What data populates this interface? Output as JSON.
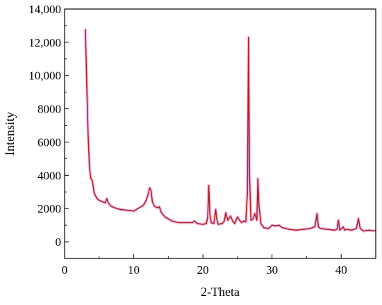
{
  "chart_data": {
    "type": "line",
    "title": "",
    "xlabel": "2-Theta",
    "ylabel": "Intensity",
    "xlim": [
      0,
      45
    ],
    "ylim": [
      -1000,
      14000
    ],
    "x_ticks": [
      0,
      10,
      20,
      30,
      40
    ],
    "x_tick_labels": [
      "0",
      "10",
      "20",
      "30",
      "40"
    ],
    "y_ticks": [
      0,
      2000,
      4000,
      6000,
      8000,
      10000,
      12000,
      14000
    ],
    "y_tick_labels": [
      "0",
      "2000",
      "4000",
      "6000",
      "8000",
      "10,000",
      "12,000",
      "14,000"
    ],
    "grid": false,
    "legend": "none",
    "colors": {
      "line": "#b22222",
      "halo": "#f2b6e6",
      "axis": "#000000"
    },
    "series": [
      {
        "x": [
          3.0,
          3.2,
          3.4,
          3.6,
          3.8,
          4.0,
          4.3,
          4.7,
          5.0,
          5.5,
          5.9,
          6.1,
          6.3,
          6.7,
          7.2,
          8.0,
          9.0,
          10.0,
          10.8,
          11.4,
          11.8,
          12.1,
          12.3,
          12.5,
          12.7,
          13.0,
          13.4,
          13.7,
          14.0,
          14.5,
          15.5,
          16.5,
          17.5,
          18.5,
          18.8,
          19.2,
          20.0,
          20.5,
          20.7,
          20.85,
          21.0,
          21.2,
          21.6,
          21.85,
          22.0,
          22.2,
          22.8,
          23.1,
          23.3,
          23.6,
          24.0,
          24.3,
          24.6,
          25.0,
          25.3,
          25.6,
          25.9,
          26.2,
          26.45,
          26.6,
          26.75,
          26.95,
          27.2,
          27.5,
          27.8,
          27.95,
          28.1,
          28.4,
          28.8,
          29.5,
          30.0,
          30.5,
          31.0,
          31.5,
          32.5,
          33.5,
          34.5,
          35.5,
          36.2,
          36.5,
          36.7,
          37.0,
          38.0,
          39.0,
          39.4,
          39.6,
          39.8,
          40.3,
          40.5,
          40.8,
          41.5,
          42.2,
          42.5,
          42.75,
          43.2,
          44.0,
          45.0
        ],
        "y": [
          12800,
          9500,
          6500,
          4500,
          3800,
          3700,
          2900,
          2600,
          2500,
          2400,
          2350,
          2600,
          2350,
          2150,
          2050,
          1950,
          1900,
          1850,
          2050,
          2200,
          2500,
          2900,
          3250,
          3100,
          2400,
          2150,
          2050,
          2100,
          1750,
          1500,
          1250,
          1150,
          1150,
          1150,
          1250,
          1100,
          1050,
          1100,
          1500,
          3400,
          1700,
          1150,
          1100,
          1950,
          1400,
          1050,
          1100,
          1250,
          1750,
          1300,
          1550,
          1250,
          1100,
          1500,
          1300,
          1150,
          1250,
          1200,
          3000,
          12300,
          4000,
          1300,
          1350,
          1700,
          1300,
          3800,
          2200,
          1100,
          850,
          800,
          1000,
          950,
          1000,
          850,
          750,
          700,
          750,
          800,
          900,
          1700,
          900,
          800,
          750,
          700,
          750,
          1300,
          700,
          900,
          700,
          750,
          700,
          800,
          1400,
          800,
          650,
          700,
          650
        ]
      }
    ]
  }
}
